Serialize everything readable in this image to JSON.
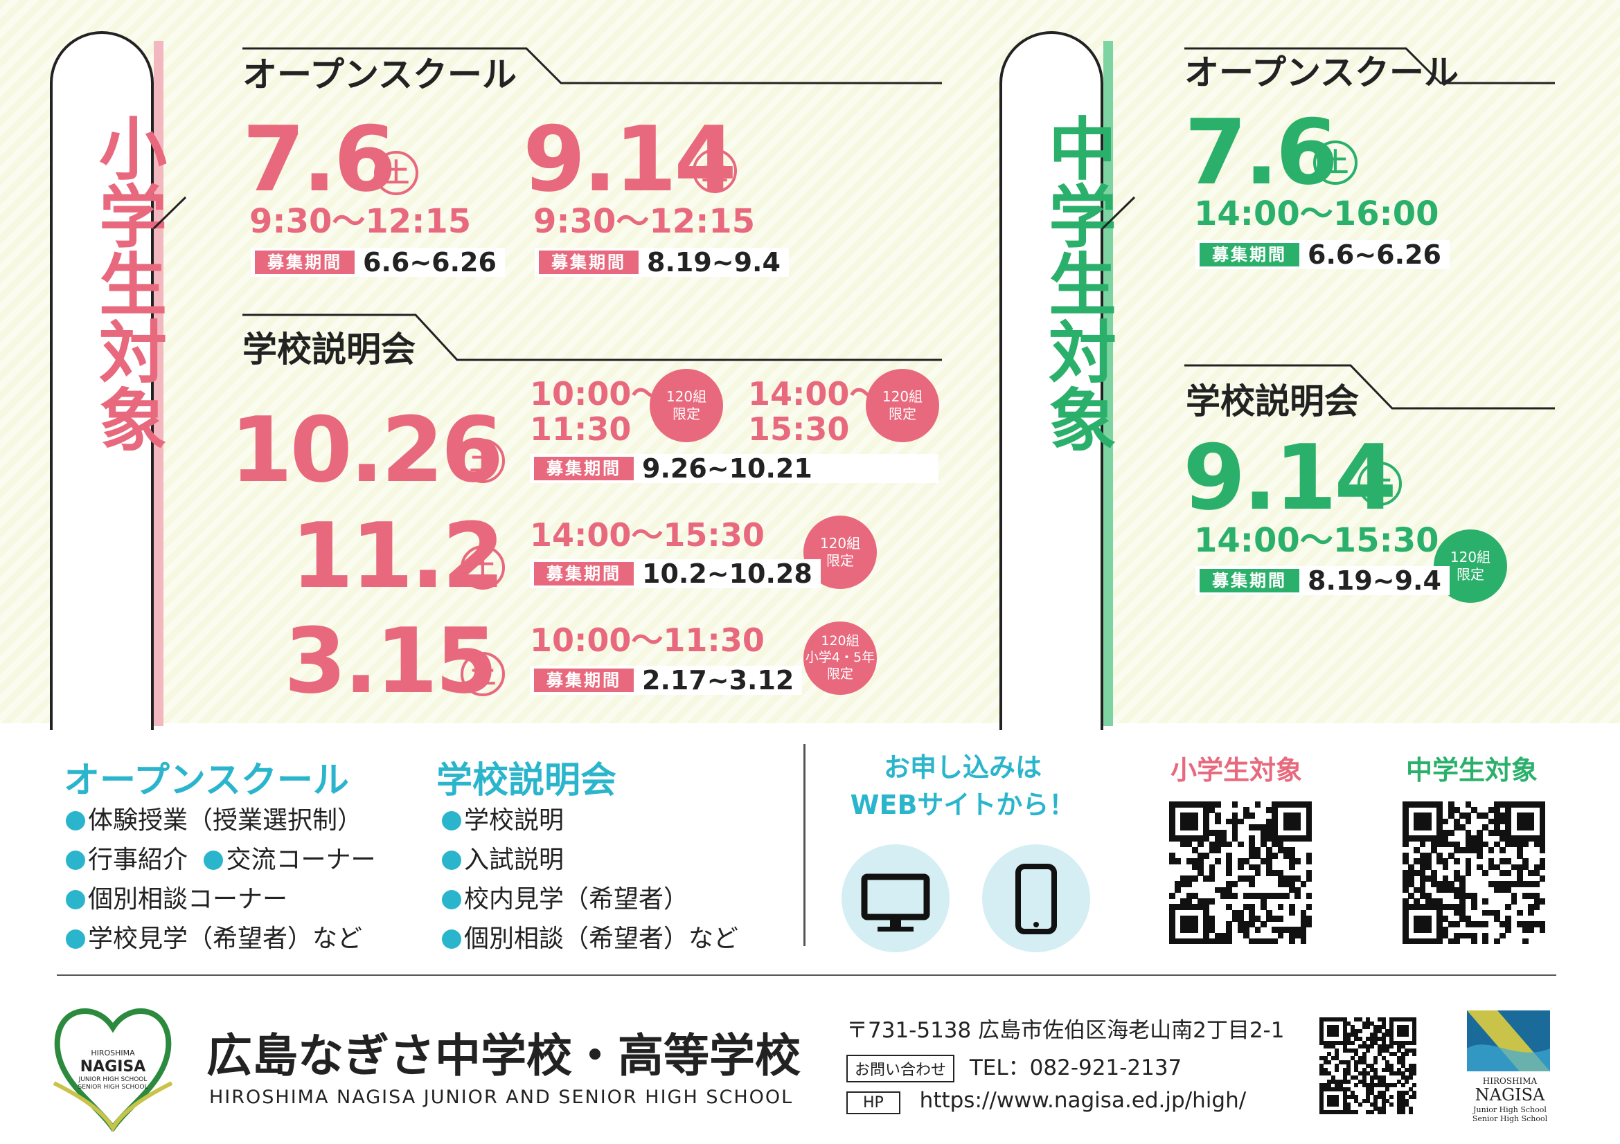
{
  "elementary": {
    "tab_label": "小学生対象",
    "open_school": {
      "heading": "オープンスクール",
      "events": [
        {
          "date": "7.6",
          "day": "土",
          "time": "9:30～12:15",
          "period_label": "募集期間",
          "period": "6.6~6.26"
        },
        {
          "date": "9.14",
          "day": "土",
          "time": "9:30～12:15",
          "period_label": "募集期間",
          "period": "8.19~9.4"
        }
      ]
    },
    "briefing": {
      "heading": "学校説明会",
      "events": [
        {
          "date": "10.26",
          "day": "土",
          "time1": "10:00～",
          "time1b": "11:30",
          "limit1a": "120組",
          "limit1b": "限定",
          "time2": "14:00～",
          "time2b": "15:30",
          "limit2a": "120組",
          "limit2b": "限定",
          "period_label": "募集期間",
          "period": "9.26~10.21"
        },
        {
          "date": "11.2",
          "day": "土",
          "time": "14:00～15:30",
          "limit_a": "120組",
          "limit_b": "限定",
          "period_label": "募集期間",
          "period": "10.2~10.28"
        },
        {
          "date": "3.15",
          "day": "土",
          "time": "10:00～11:30",
          "limit_a": "120組",
          "limit_b": "小学4・5年",
          "limit_c": "限定",
          "period_label": "募集期間",
          "period": "2.17~3.12"
        }
      ]
    }
  },
  "junior": {
    "tab_label": "中学生対象",
    "open_school": {
      "heading": "オープンスクール",
      "date": "7.6",
      "day": "土",
      "time": "14:00～16:00",
      "period_label": "募集期間",
      "period": "6.6~6.26"
    },
    "briefing": {
      "heading": "学校説明会",
      "date": "9.14",
      "day": "土",
      "time": "14:00～15:30",
      "limit_a": "120組",
      "limit_b": "限定",
      "period_label": "募集期間",
      "period": "8.19~9.4"
    }
  },
  "info": {
    "open_school_title": "オープンスクール",
    "open_school_items": [
      "体験授業（授業選択制）",
      "行事紹介",
      "交流コーナー",
      "個別相談コーナー",
      "学校見学（希望者）など"
    ],
    "briefing_title": "学校説明会",
    "briefing_items": [
      "学校説明",
      "入試説明",
      "校内見学（希望者）",
      "個別相談（希望者）など"
    ],
    "apply_line1": "お申し込みは",
    "apply_line2": "WEBサイトから！",
    "qr_elementary_label": "小学生対象",
    "qr_junior_label": "中学生対象"
  },
  "footer": {
    "logo_top": "HIROSHIMA",
    "logo_name": "NAGISA",
    "logo_sub1": "JUNIOR HIGH SCHOOL",
    "logo_sub2": "SENIOR HIGH SCHOOL",
    "school_name": "広島なぎさ中学校・高等学校",
    "school_name_en": "HIROSHIMA NAGISA JUNIOR AND SENIOR HIGH SCHOOL",
    "address": "〒731-5138 広島市佐伯区海老山南2丁目2-1",
    "contact_label": "お問い合わせ",
    "tel": "TEL：082-921-2137",
    "hp_label": "HP",
    "url": "https://www.nagisa.ed.jp/high/",
    "brand_top": "HIROSHIMA",
    "brand_name": "NAGISA",
    "brand_sub1": "Junior High School",
    "brand_sub2": "Senior High School"
  },
  "colors": {
    "pink": "#e8697d",
    "green": "#2bb06b",
    "cyan": "#2ab5cc"
  },
  "icons": [
    "monitor-icon",
    "smartphone-icon",
    "qr-code-icon",
    "school-crest-logo",
    "n-brand-logo"
  ]
}
